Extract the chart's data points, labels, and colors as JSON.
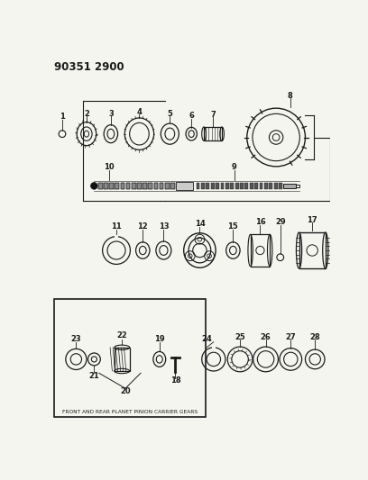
{
  "title": "90351 2900",
  "bg_color": "#f5f5f0",
  "fg_color": "#1a1a1a",
  "figsize": [
    4.08,
    5.33
  ],
  "dpi": 100
}
